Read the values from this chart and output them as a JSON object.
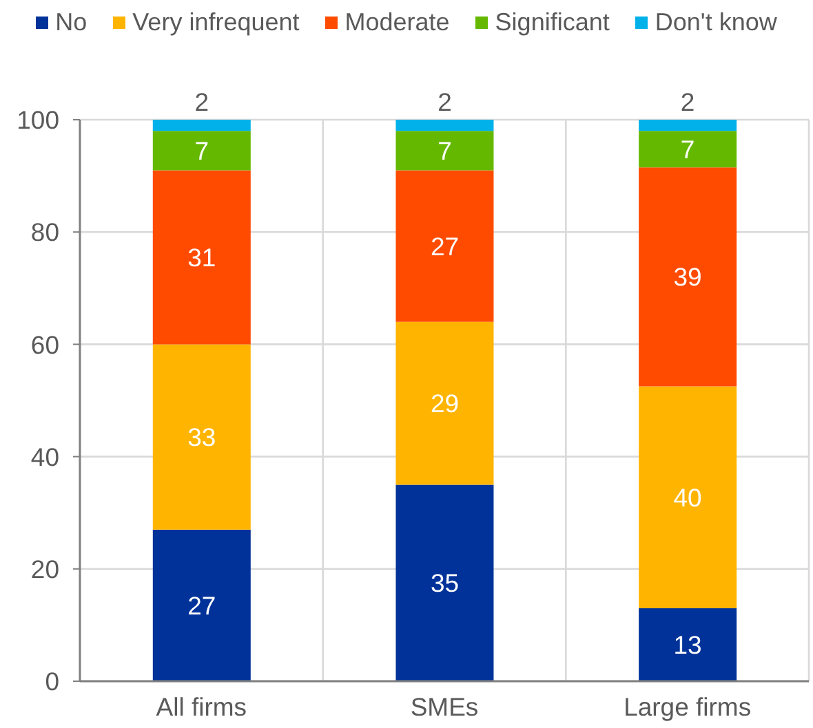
{
  "chart_data": {
    "type": "bar",
    "stacked": true,
    "categories": [
      "All firms",
      "SMEs",
      "Large firms"
    ],
    "series": [
      {
        "name": "No",
        "color": "#003299",
        "values": [
          27,
          35,
          13
        ],
        "value_labels": [
          "27",
          "35",
          "13"
        ]
      },
      {
        "name": "Very infrequent",
        "color": "#ffb400",
        "values": [
          33,
          29,
          39.5
        ],
        "value_labels": [
          "33",
          "29",
          "40"
        ]
      },
      {
        "name": "Moderate",
        "color": "#ff4b00",
        "values": [
          31,
          27,
          39
        ],
        "value_labels": [
          "31",
          "27",
          "39"
        ]
      },
      {
        "name": "Significant",
        "color": "#65b800",
        "values": [
          7,
          7,
          6.5
        ],
        "value_labels": [
          "7",
          "7",
          "7"
        ]
      },
      {
        "name": "Don't know",
        "color": "#00b1ea",
        "values": [
          2,
          2,
          2
        ],
        "value_labels": [
          "2",
          "2",
          "2"
        ]
      }
    ],
    "ylim": [
      0,
      100
    ],
    "yticks": [
      0,
      20,
      40,
      60,
      80,
      100
    ],
    "grid": true,
    "legend": "top"
  }
}
